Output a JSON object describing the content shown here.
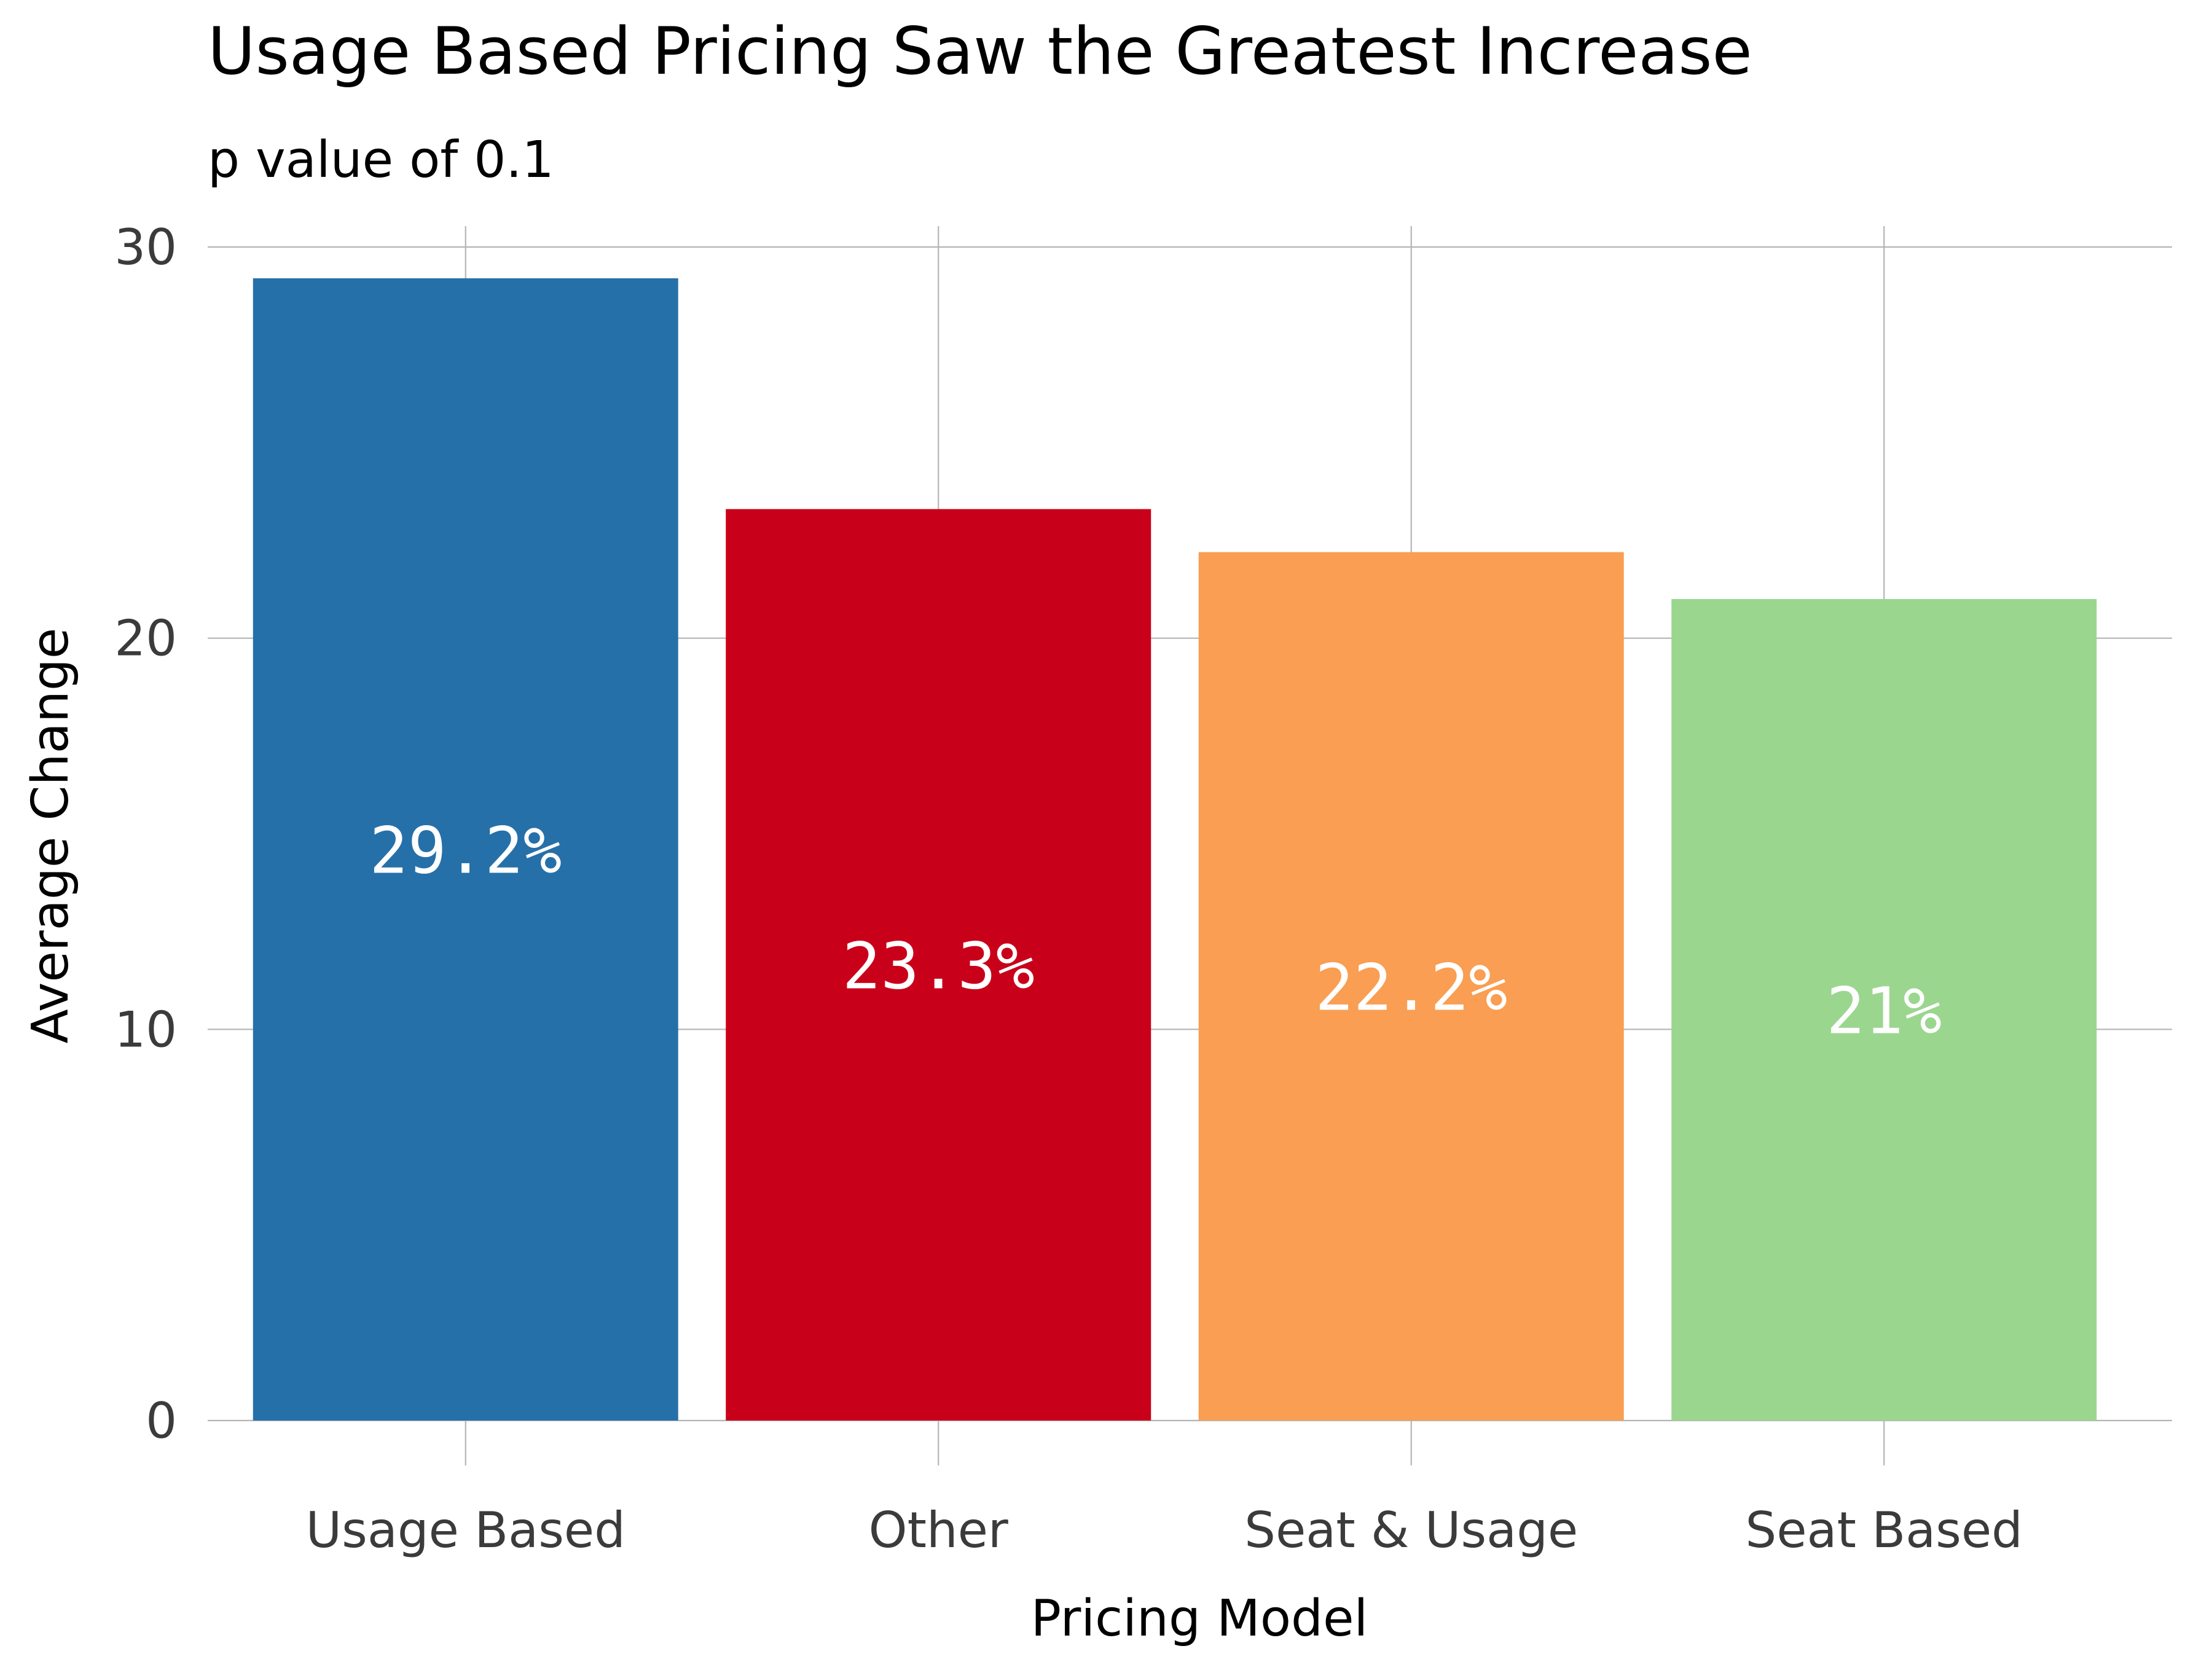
{
  "chart_data": {
    "type": "bar",
    "title": "Usage Based Pricing Saw the Greatest Increase",
    "subtitle": "p value of 0.1",
    "xlabel": "Pricing Model",
    "ylabel": "Average Change",
    "categories": [
      "Usage Based",
      "Other",
      "Seat & Usage",
      "Seat Based"
    ],
    "values": [
      29.2,
      23.3,
      22.2,
      21.0
    ],
    "data_labels": [
      "29.2%",
      "23.3%",
      "22.2%",
      "21%"
    ],
    "colors": [
      "#2670a9",
      "#c90019",
      "#f99e52",
      "#9bd68f"
    ],
    "ylim": [
      0,
      30
    ],
    "y_ticks": [
      0,
      10,
      20,
      30
    ],
    "grid": true,
    "legend": "none"
  }
}
